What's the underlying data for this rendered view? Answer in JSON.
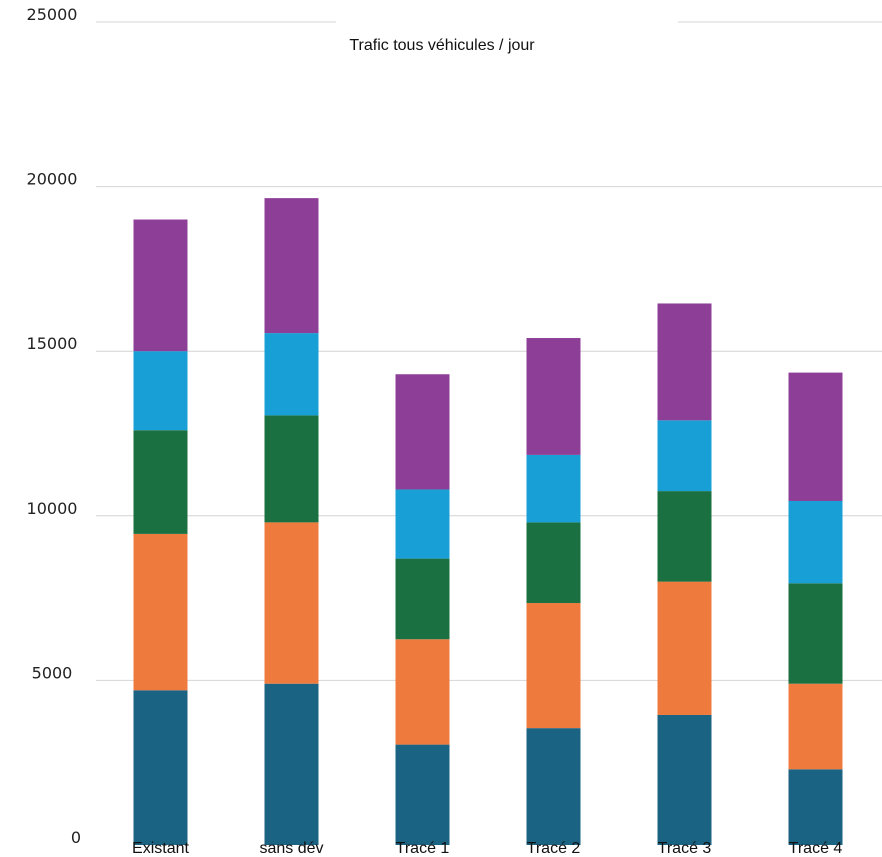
{
  "chart_data": {
    "type": "bar",
    "stacked": true,
    "title": "Trafic tous véhicules / jour",
    "xlabel": "",
    "ylabel": "",
    "ylim": [
      0,
      25000
    ],
    "yticks": [
      "0",
      "5000",
      "10000",
      "15000",
      "20000",
      "25000"
    ],
    "grid": true,
    "legend": "none",
    "categories": [
      "Existant",
      "sans dév",
      "Tracé 1",
      "Tracé 2",
      "Tracé 3",
      "Tracé 4"
    ],
    "colors": [
      "#1b6383",
      "#ee7b3d",
      "#1a7040",
      "#18a0d6",
      "#8d3f97"
    ],
    "series": [
      {
        "values": [
          4700,
          4900,
          3050,
          3550,
          3950,
          2300
        ]
      },
      {
        "values": [
          4750,
          4900,
          3200,
          3800,
          4050,
          2600
        ]
      },
      {
        "values": [
          3150,
          3250,
          2450,
          2450,
          2750,
          3050
        ]
      },
      {
        "values": [
          2400,
          2500,
          2100,
          2050,
          2150,
          2500
        ]
      },
      {
        "values": [
          4000,
          4100,
          3500,
          3550,
          3550,
          3900
        ]
      }
    ]
  }
}
